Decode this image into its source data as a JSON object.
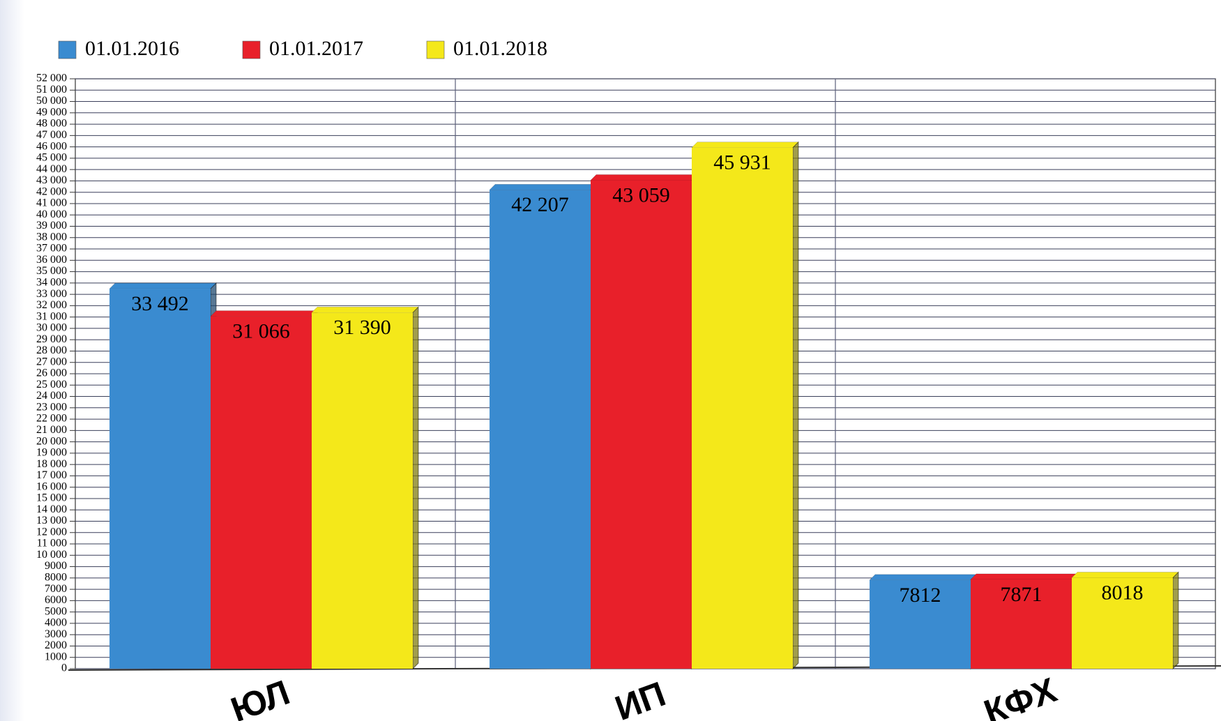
{
  "chart_data": {
    "type": "bar",
    "categories": [
      "ЮЛ",
      "ИП",
      "КФХ"
    ],
    "series": [
      {
        "name": "01.01.2016",
        "color": "#3a8bd0",
        "values": [
          33492,
          42207,
          7812
        ],
        "value_labels": [
          "33 492",
          "42 207",
          "7812"
        ]
      },
      {
        "name": "01.01.2017",
        "color": "#e8202a",
        "values": [
          31066,
          43059,
          7871
        ],
        "value_labels": [
          "31 066",
          "43 059",
          "7871"
        ]
      },
      {
        "name": "01.01.2018",
        "color": "#f4e81a",
        "values": [
          31390,
          45931,
          8018
        ],
        "value_labels": [
          "31 390",
          "45 931",
          "8018"
        ]
      }
    ],
    "ylim": [
      0,
      52000
    ],
    "yticks": [
      0,
      1000,
      2000,
      3000,
      4000,
      5000,
      6000,
      7000,
      8000,
      9000,
      {
        "value": 10000,
        "label": "10 000"
      },
      {
        "value": 11000,
        "label": "11 000"
      },
      {
        "value": 12000,
        "label": "12 000"
      },
      {
        "value": 13000,
        "label": "13 000"
      },
      {
        "value": 14000,
        "label": "14 000"
      },
      {
        "value": 15000,
        "label": "15 000"
      },
      {
        "value": 16000,
        "label": "16 000"
      },
      {
        "value": 17000,
        "label": "17 000"
      },
      {
        "value": 18000,
        "label": "18 000"
      },
      {
        "value": 19000,
        "label": "19 000"
      },
      {
        "value": 20000,
        "label": "20 000"
      },
      {
        "value": 21000,
        "label": "21 000"
      },
      {
        "value": 22000,
        "label": "22 000"
      },
      {
        "value": 23000,
        "label": "23 000"
      },
      {
        "value": 24000,
        "label": "24 000"
      },
      {
        "value": 25000,
        "label": "25 000"
      },
      {
        "value": 26000,
        "label": "26 000"
      },
      {
        "value": 27000,
        "label": "27 000"
      },
      {
        "value": 28000,
        "label": "28 000"
      },
      {
        "value": 29000,
        "label": "29 000"
      },
      {
        "value": 30000,
        "label": "30 000"
      },
      {
        "value": 31000,
        "label": "31 000"
      },
      {
        "value": 32000,
        "label": "32 000"
      },
      {
        "value": 33000,
        "label": "33 000"
      },
      {
        "value": 34000,
        "label": "34 000"
      },
      {
        "value": 35000,
        "label": "35 000"
      },
      {
        "value": 36000,
        "label": "36 000"
      },
      {
        "value": 37000,
        "label": "37 000"
      },
      {
        "value": 38000,
        "label": "38 000"
      },
      {
        "value": 39000,
        "label": "39 000"
      },
      {
        "value": 40000,
        "label": "40 000"
      },
      {
        "value": 41000,
        "label": "41 000"
      },
      {
        "value": 42000,
        "label": "42 000"
      },
      {
        "value": 43000,
        "label": "43 000"
      },
      {
        "value": 44000,
        "label": "44 000"
      },
      {
        "value": 45000,
        "label": "45 000"
      },
      {
        "value": 46000,
        "label": "46 000"
      },
      {
        "value": 47000,
        "label": "47 000"
      },
      {
        "value": 48000,
        "label": "48 000"
      },
      {
        "value": 49000,
        "label": "49 000"
      },
      {
        "value": 50000,
        "label": "50 000"
      },
      {
        "value": 51000,
        "label": "51 000"
      },
      {
        "value": 52000,
        "label": "52 000"
      }
    ],
    "grid": true,
    "legend": "top-left"
  }
}
